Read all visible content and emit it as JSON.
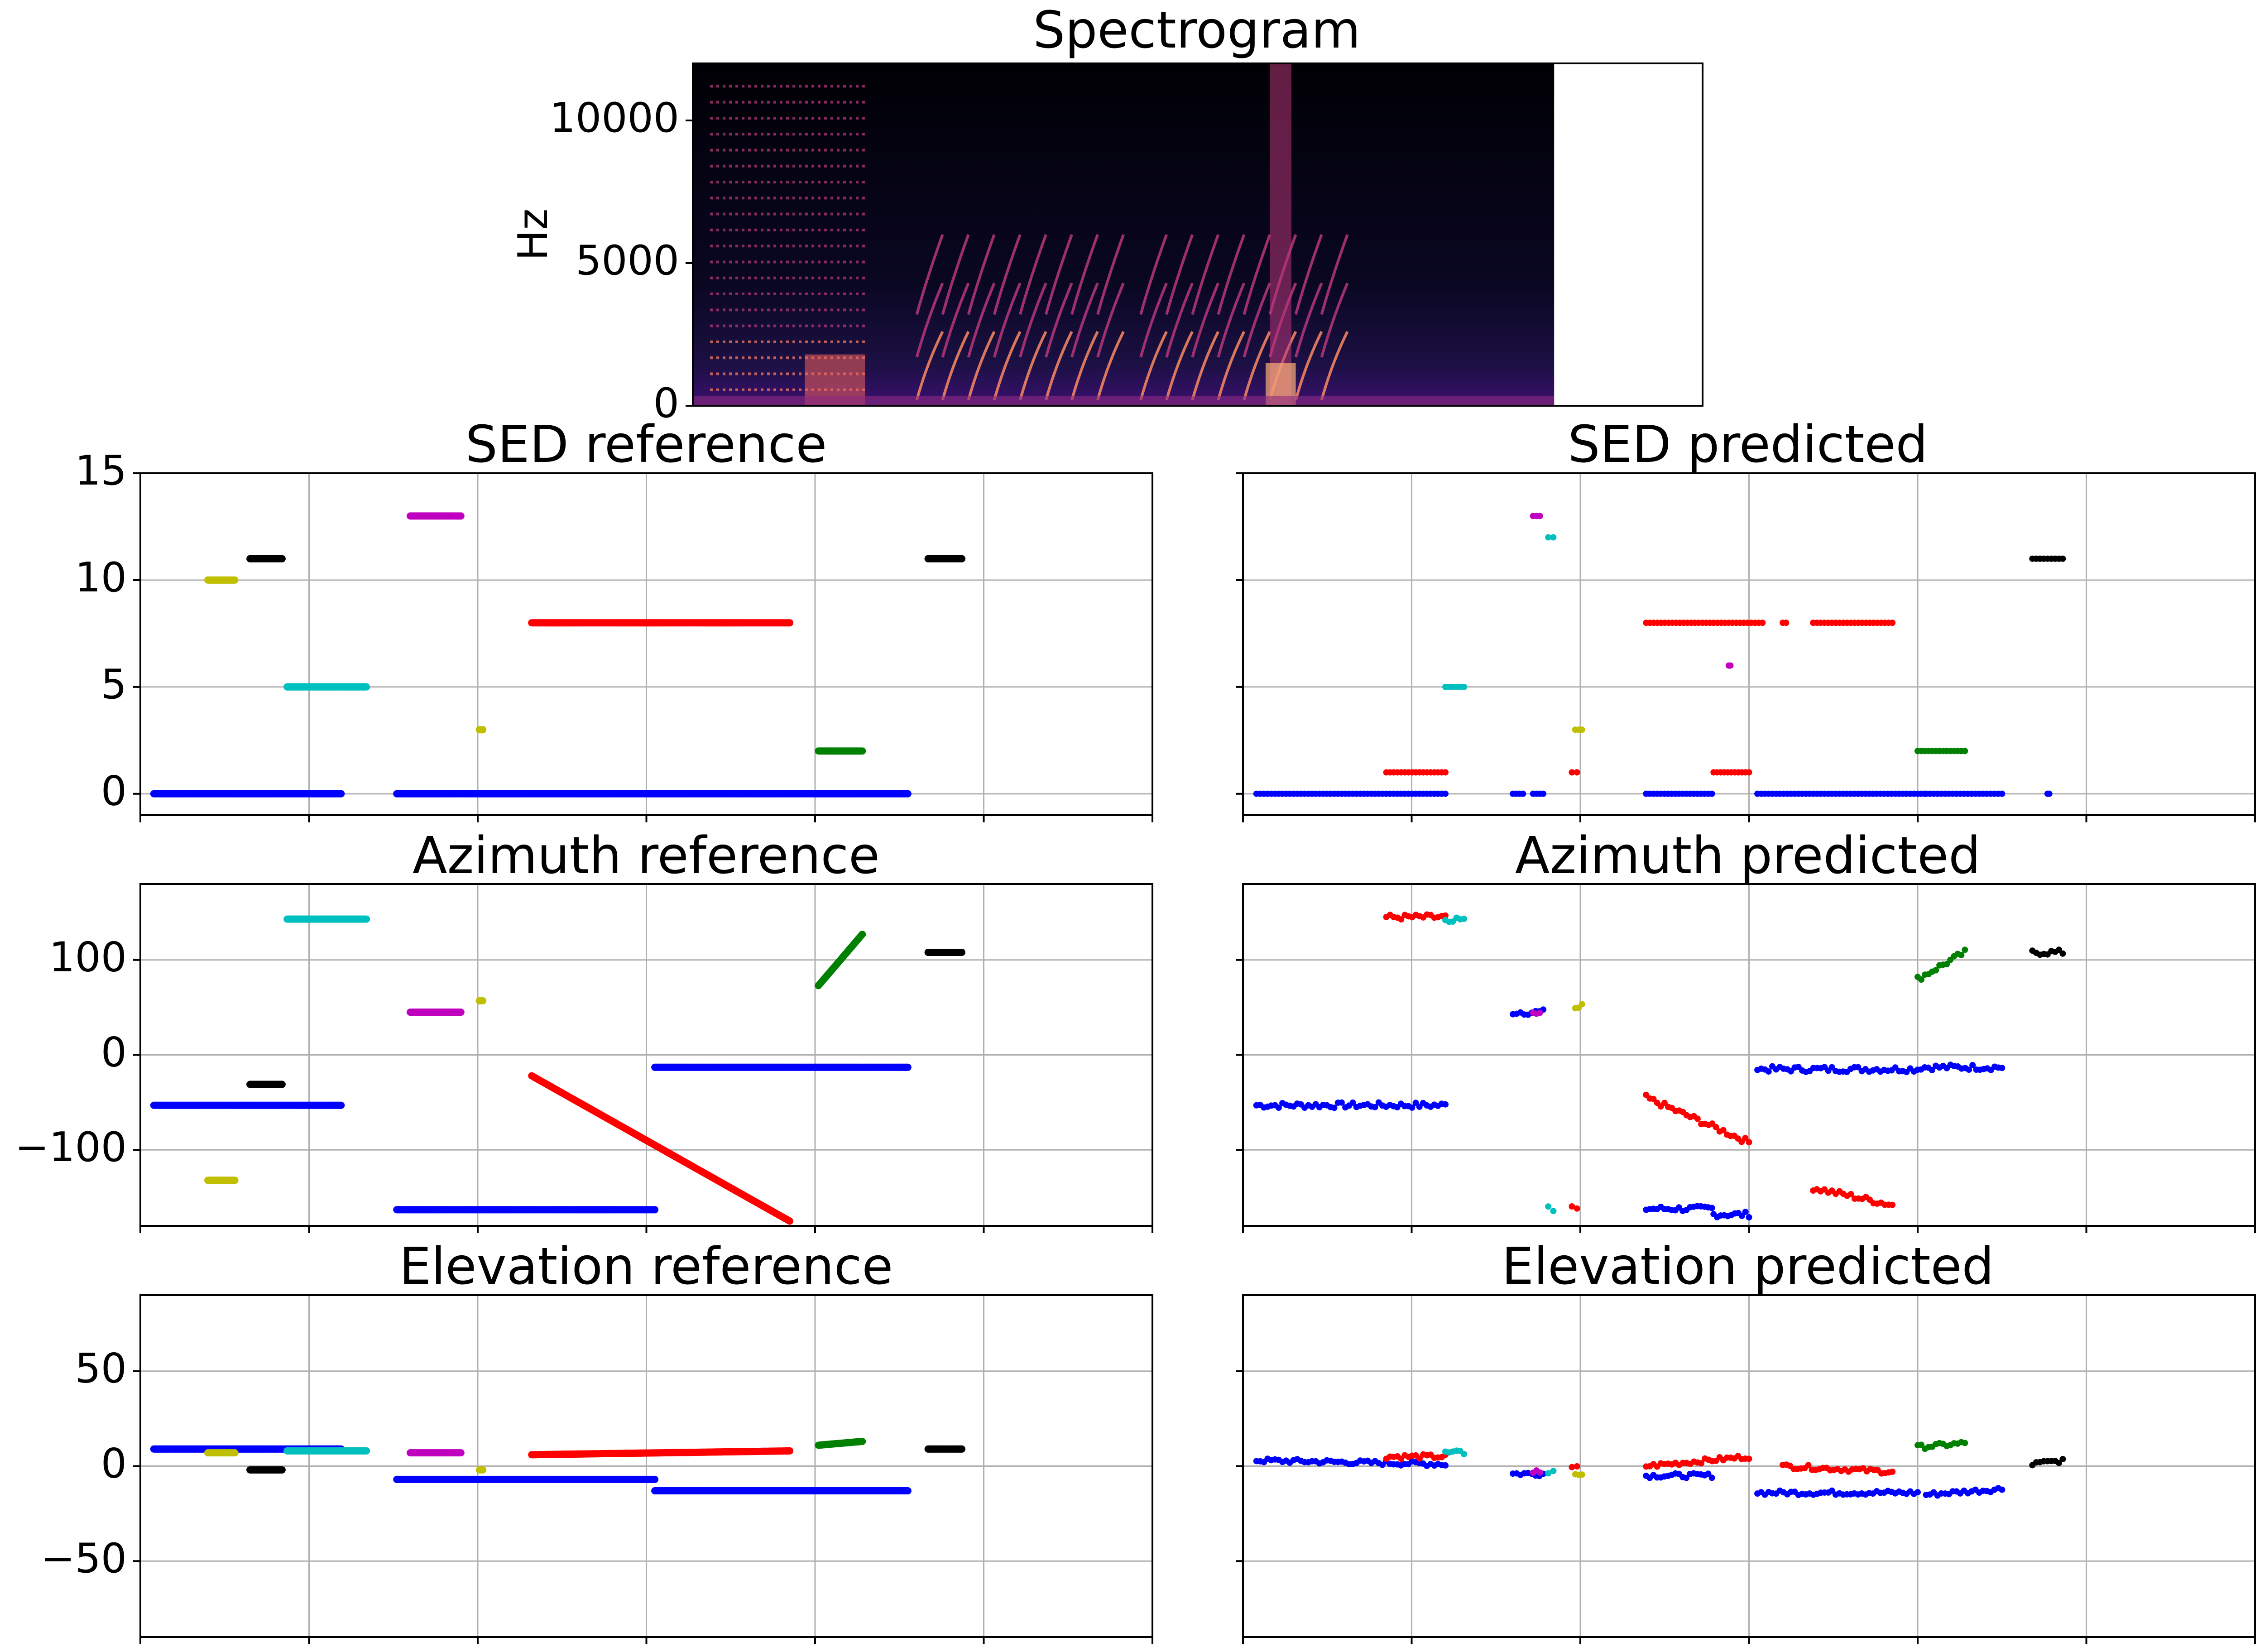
{
  "chart_data": [
    {
      "id": "spectrogram",
      "type": "heatmap",
      "title": "Spectrogram",
      "ylabel": "Hz",
      "ylim": [
        0,
        12000
      ],
      "yticks": [
        0,
        5000,
        10000
      ],
      "xlim": [
        0,
        1
      ],
      "grid": false,
      "colormap": "magma",
      "signal_end_fraction": 0.853
    },
    {
      "id": "sed-reference",
      "type": "scatter",
      "title": "SED reference",
      "xlim": [
        0,
        600
      ],
      "xticks": [
        0,
        100,
        200,
        300,
        400,
        500,
        600
      ],
      "ylim": [
        -1,
        15
      ],
      "yticks": [
        0,
        5,
        10,
        15
      ],
      "grid": true,
      "series": [
        {
          "color": "#0000ff",
          "segments": [
            [
              8,
              119,
              0
            ],
            [
              152,
              455,
              0
            ]
          ]
        },
        {
          "color": "#bfbf00",
          "segments": [
            [
              40,
              56,
              10
            ],
            [
              201,
              203,
              3
            ]
          ]
        },
        {
          "color": "#000000",
          "segments": [
            [
              65,
              84,
              11
            ],
            [
              467,
              487,
              11
            ]
          ]
        },
        {
          "color": "#00bfbf",
          "segments": [
            [
              87,
              134,
              5
            ]
          ]
        },
        {
          "color": "#bf00bf",
          "segments": [
            [
              160,
              190,
              13
            ]
          ]
        },
        {
          "color": "#ff0000",
          "segments": [
            [
              232,
              385,
              8
            ]
          ]
        },
        {
          "color": "#008000",
          "segments": [
            [
              402,
              428,
              2
            ]
          ]
        }
      ]
    },
    {
      "id": "sed-predicted",
      "type": "scatter",
      "title": "SED predicted",
      "xlim": [
        0,
        600
      ],
      "xticks": [
        0,
        100,
        200,
        300,
        400,
        500,
        600
      ],
      "ylim": [
        -1,
        15
      ],
      "yticks": [
        0,
        5,
        10,
        15
      ],
      "grid": true,
      "series": [
        {
          "color": "#0000ff",
          "segments": [
            [
              8,
              120,
              0
            ],
            [
              160,
              166,
              0
            ],
            [
              172,
              178,
              0
            ],
            [
              239,
              278,
              0
            ],
            [
              305,
              400,
              0
            ],
            [
              402,
              404,
              0
            ],
            [
              405,
              450,
              0
            ],
            [
              477,
              478,
              0
            ]
          ]
        },
        {
          "color": "#ff0000",
          "segments": [
            [
              85,
              120,
              1
            ],
            [
              195,
              198,
              1
            ],
            [
              239,
              308,
              8
            ],
            [
              320,
              322,
              8
            ],
            [
              338,
              385,
              8
            ],
            [
              279,
              300,
              1
            ]
          ]
        },
        {
          "color": "#00bfbf",
          "segments": [
            [
              120,
              131,
              5
            ],
            [
              181,
              184,
              12
            ]
          ]
        },
        {
          "color": "#bf00bf",
          "segments": [
            [
              172,
              176,
              13
            ],
            [
              288,
              289,
              6
            ]
          ]
        },
        {
          "color": "#bfbf00",
          "segments": [
            [
              197,
              201,
              3
            ]
          ]
        },
        {
          "color": "#008000",
          "segments": [
            [
              400,
              428,
              2
            ]
          ]
        },
        {
          "color": "#000000",
          "segments": [
            [
              468,
              486,
              11
            ]
          ]
        }
      ]
    },
    {
      "id": "azimuth-reference",
      "type": "scatter",
      "title": "Azimuth reference",
      "xlim": [
        0,
        600
      ],
      "xticks": [
        0,
        100,
        200,
        300,
        400,
        500,
        600
      ],
      "ylim": [
        -180,
        180
      ],
      "yticks": [
        -100,
        0,
        100
      ],
      "grid": true,
      "series": [
        {
          "color": "#0000ff",
          "segments": [
            [
              8,
              119,
              -53
            ],
            [
              152,
              305,
              -163
            ],
            [
              305,
              455,
              -13
            ]
          ]
        },
        {
          "color": "#bfbf00",
          "segments": [
            [
              40,
              56,
              -132
            ],
            [
              201,
              203,
              57
            ]
          ]
        },
        {
          "color": "#000000",
          "segments": [
            [
              65,
              84,
              -31
            ],
            [
              467,
              487,
              108
            ]
          ]
        },
        {
          "color": "#00bfbf",
          "segments": [
            [
              87,
              134,
              143
            ]
          ]
        },
        {
          "color": "#bf00bf",
          "segments": [
            [
              160,
              190,
              45
            ]
          ]
        },
        {
          "color": "#ff0000",
          "segments": [
            [
              232,
              385,
              -22,
              -175
            ]
          ]
        },
        {
          "color": "#008000",
          "segments": [
            [
              402,
              428,
              73,
              127
            ]
          ]
        }
      ]
    },
    {
      "id": "azimuth-predicted",
      "type": "scatter",
      "title": "Azimuth predicted",
      "xlim": [
        0,
        600
      ],
      "xticks": [
        0,
        100,
        200,
        300,
        400,
        500,
        600
      ],
      "ylim": [
        -180,
        180
      ],
      "yticks": [
        -100,
        0,
        100
      ],
      "grid": true,
      "series": [
        {
          "color": "#0000ff",
          "segments": [
            [
              8,
              120,
              -53
            ],
            [
              160,
              178,
              45
            ],
            [
              239,
              278,
              -162
            ],
            [
              279,
              300,
              -168
            ],
            [
              305,
              400,
              -15
            ],
            [
              402,
              450,
              -13
            ]
          ]
        },
        {
          "color": "#ff0000",
          "segments": [
            [
              85,
              120,
              145
            ],
            [
              195,
              198,
              -162
            ],
            [
              239,
              300,
              -45,
              -92
            ],
            [
              338,
              385,
              -140,
              -158
            ]
          ]
        },
        {
          "color": "#00bfbf",
          "segments": [
            [
              120,
              131,
              143
            ],
            [
              181,
              184,
              -162
            ]
          ]
        },
        {
          "color": "#bf00bf",
          "segments": [
            [
              172,
              176,
              45
            ]
          ]
        },
        {
          "color": "#bfbf00",
          "segments": [
            [
              197,
              201,
              52
            ]
          ]
        },
        {
          "color": "#008000",
          "segments": [
            [
              400,
              428,
              80,
              108
            ]
          ]
        },
        {
          "color": "#000000",
          "segments": [
            [
              468,
              486,
              108
            ]
          ]
        }
      ]
    },
    {
      "id": "elevation-reference",
      "type": "scatter",
      "title": "Elevation reference",
      "xlim": [
        0,
        600
      ],
      "xticks": [
        0,
        100,
        200,
        300,
        400,
        500,
        600
      ],
      "ylim": [
        -90,
        90
      ],
      "yticks": [
        -50,
        0,
        50
      ],
      "grid": true,
      "series": [
        {
          "color": "#0000ff",
          "segments": [
            [
              8,
              119,
              9
            ],
            [
              152,
              305,
              -7
            ],
            [
              305,
              455,
              -13
            ]
          ]
        },
        {
          "color": "#bfbf00",
          "segments": [
            [
              40,
              56,
              7
            ],
            [
              201,
              203,
              -2
            ]
          ]
        },
        {
          "color": "#000000",
          "segments": [
            [
              65,
              84,
              -2
            ],
            [
              467,
              487,
              9
            ]
          ]
        },
        {
          "color": "#00bfbf",
          "segments": [
            [
              87,
              134,
              8
            ]
          ]
        },
        {
          "color": "#bf00bf",
          "segments": [
            [
              160,
              190,
              7
            ]
          ]
        },
        {
          "color": "#ff0000",
          "segments": [
            [
              232,
              385,
              6,
              8
            ]
          ]
        },
        {
          "color": "#008000",
          "segments": [
            [
              402,
              428,
              11,
              13
            ]
          ]
        }
      ]
    },
    {
      "id": "elevation-predicted",
      "type": "scatter",
      "title": "Elevation predicted",
      "xlim": [
        0,
        600
      ],
      "xticks": [
        0,
        100,
        200,
        300,
        400,
        500,
        600
      ],
      "ylim": [
        -90,
        90
      ],
      "yticks": [
        -50,
        0,
        50
      ],
      "grid": true,
      "series": [
        {
          "color": "#0000ff",
          "segments": [
            [
              8,
              120,
              3,
              1
            ],
            [
              160,
              178,
              -4
            ],
            [
              239,
              278,
              -5
            ],
            [
              305,
              400,
              -14
            ],
            [
              405,
              450,
              -15,
              -12
            ]
          ]
        },
        {
          "color": "#ff0000",
          "segments": [
            [
              85,
              120,
              5
            ],
            [
              195,
              198,
              -1
            ],
            [
              239,
              300,
              0,
              5
            ],
            [
              320,
              385,
              0,
              -3
            ]
          ]
        },
        {
          "color": "#00bfbf",
          "segments": [
            [
              120,
              131,
              7
            ],
            [
              181,
              184,
              -3
            ]
          ]
        },
        {
          "color": "#bf00bf",
          "segments": [
            [
              172,
              176,
              -3
            ]
          ]
        },
        {
          "color": "#bfbf00",
          "segments": [
            [
              197,
              201,
              -4
            ]
          ]
        },
        {
          "color": "#008000",
          "segments": [
            [
              400,
              428,
              10,
              12
            ]
          ]
        },
        {
          "color": "#000000",
          "segments": [
            [
              468,
              486,
              1,
              3
            ]
          ]
        }
      ]
    }
  ]
}
